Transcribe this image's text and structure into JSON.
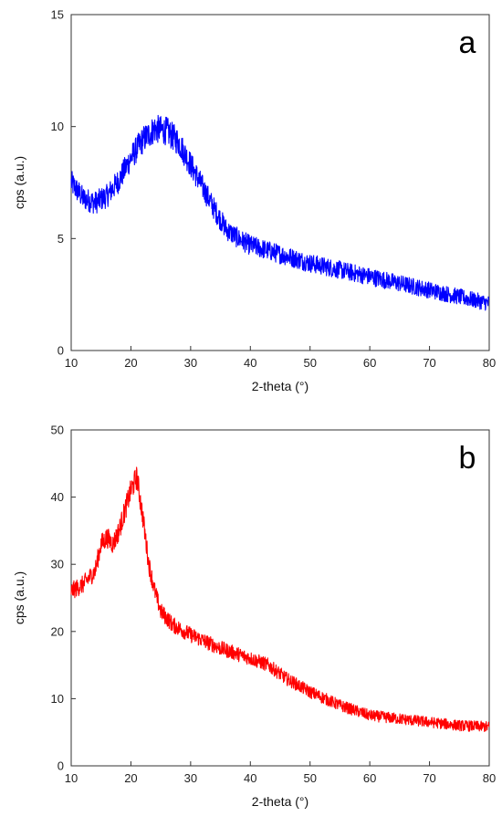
{
  "chart_data": [
    {
      "type": "line",
      "panel_label": "a",
      "xlabel": "2-theta (°)",
      "ylabel": "cps (a.u.)",
      "xlim": [
        10,
        80
      ],
      "ylim": [
        0,
        15
      ],
      "x_ticks": [
        10,
        20,
        30,
        40,
        50,
        60,
        70,
        80
      ],
      "y_ticks": [
        0,
        5,
        10,
        15
      ],
      "grid": false,
      "series": [
        {
          "color": "#0000ff",
          "x": [
            10,
            12,
            14,
            16,
            18,
            20,
            22,
            24,
            26,
            28,
            30,
            32,
            34,
            36,
            38,
            40,
            45,
            50,
            55,
            60,
            65,
            70,
            75,
            80
          ],
          "y": [
            7.5,
            6.8,
            6.6,
            6.9,
            7.6,
            8.6,
            9.4,
            9.9,
            9.8,
            9.3,
            8.3,
            7.3,
            6.3,
            5.4,
            5.0,
            4.7,
            4.3,
            3.9,
            3.6,
            3.3,
            3.0,
            2.7,
            2.4,
            2.1
          ],
          "noise": 0.55
        }
      ]
    },
    {
      "type": "line",
      "panel_label": "b",
      "xlabel": "2-theta (°)",
      "ylabel": "cps (a.u.)",
      "xlim": [
        10,
        80
      ],
      "ylim": [
        0,
        50
      ],
      "x_ticks": [
        10,
        20,
        30,
        40,
        50,
        60,
        70,
        80
      ],
      "y_ticks": [
        0,
        10,
        20,
        30,
        40,
        50
      ],
      "grid": false,
      "series": [
        {
          "color": "#ff0000",
          "x": [
            10,
            12,
            14,
            15,
            16,
            17,
            18,
            19,
            20,
            21,
            22,
            23,
            24,
            25,
            27,
            30,
            35,
            40,
            43,
            46,
            50,
            55,
            60,
            65,
            70,
            75,
            80
          ],
          "y": [
            26,
            27,
            29,
            33,
            34,
            33,
            35,
            38,
            41,
            43,
            37,
            30,
            26,
            23,
            21,
            19.5,
            17.5,
            16,
            15,
            13,
            11,
            9,
            7.5,
            7,
            6.5,
            6,
            5.8
          ],
          "noise": 1.3
        }
      ]
    }
  ]
}
